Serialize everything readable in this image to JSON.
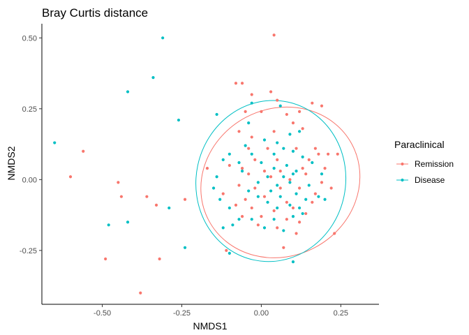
{
  "chart_data": {
    "type": "scatter",
    "title": "Bray Curtis distance",
    "xlabel": "NMDS1",
    "ylabel": "NMDS2",
    "xlim": [
      -0.69,
      0.37
    ],
    "ylim": [
      -0.44,
      0.55
    ],
    "xticks": [
      -0.5,
      -0.25,
      0.0,
      0.25
    ],
    "xtick_labels": [
      "-0.50",
      "-0.25",
      "0.00",
      "0.25"
    ],
    "yticks": [
      -0.25,
      0.0,
      0.25,
      0.5
    ],
    "ytick_labels": [
      "-0.25",
      "0.00",
      "0.25",
      "0.50"
    ],
    "grid": false,
    "legend": {
      "title": "Paraclinical",
      "placement": "right"
    },
    "series": [
      {
        "name": "Remission",
        "color": "#F8766D",
        "ellipse": {
          "cx": 0.06,
          "cy": -0.01,
          "rx": 0.255,
          "ry": 0.26,
          "angle_deg": -28
        },
        "points": [
          [
            0.04,
            0.51
          ],
          [
            -0.56,
            0.1
          ],
          [
            -0.6,
            0.01
          ],
          [
            -0.45,
            -0.01
          ],
          [
            -0.44,
            -0.06
          ],
          [
            -0.36,
            -0.06
          ],
          [
            -0.33,
            -0.09
          ],
          [
            -0.49,
            -0.28
          ],
          [
            -0.32,
            -0.28
          ],
          [
            -0.38,
            -0.4
          ],
          [
            -0.08,
            0.34
          ],
          [
            -0.06,
            0.34
          ],
          [
            -0.03,
            0.3
          ],
          [
            0.03,
            0.31
          ],
          [
            0.05,
            0.28
          ],
          [
            0.16,
            0.27
          ],
          [
            0.19,
            0.26
          ],
          [
            -0.05,
            0.24
          ],
          [
            0.0,
            0.24
          ],
          [
            0.08,
            0.23
          ],
          [
            0.12,
            0.24
          ],
          [
            0.1,
            0.2
          ],
          [
            -0.07,
            0.17
          ],
          [
            -0.03,
            0.15
          ],
          [
            0.04,
            0.17
          ],
          [
            0.13,
            0.18
          ],
          [
            -0.04,
            0.11
          ],
          [
            0.02,
            0.11
          ],
          [
            0.11,
            0.11
          ],
          [
            0.17,
            0.11
          ],
          [
            0.24,
            0.09
          ],
          [
            -0.02,
            0.07
          ],
          [
            0.05,
            0.07
          ],
          [
            0.15,
            0.07
          ],
          [
            0.18,
            0.09
          ],
          [
            0.21,
            0.09
          ],
          [
            -0.1,
            0.05
          ],
          [
            -0.06,
            0.04
          ],
          [
            0.01,
            0.03
          ],
          [
            0.06,
            0.03
          ],
          [
            0.13,
            0.04
          ],
          [
            0.2,
            0.04
          ],
          [
            -0.17,
            0.04
          ],
          [
            -0.04,
            0.02
          ],
          [
            0.03,
            0.01
          ],
          [
            0.09,
            0.0
          ],
          [
            0.14,
            0.02
          ],
          [
            0.19,
            -0.01
          ],
          [
            -0.07,
            -0.02
          ],
          [
            -0.02,
            -0.03
          ],
          [
            0.06,
            -0.03
          ],
          [
            0.12,
            -0.03
          ],
          [
            0.17,
            -0.05
          ],
          [
            0.22,
            -0.03
          ],
          [
            -0.12,
            -0.05
          ],
          [
            -0.05,
            -0.07
          ],
          [
            0.01,
            -0.06
          ],
          [
            0.08,
            -0.08
          ],
          [
            0.16,
            -0.08
          ],
          [
            -0.08,
            -0.09
          ],
          [
            -0.03,
            -0.1
          ],
          [
            0.04,
            -0.11
          ],
          [
            0.1,
            -0.1
          ],
          [
            0.14,
            -0.12
          ],
          [
            -0.06,
            -0.13
          ],
          [
            0.0,
            -0.13
          ],
          [
            0.08,
            -0.14
          ],
          [
            0.12,
            -0.15
          ],
          [
            -0.01,
            -0.16
          ],
          [
            0.05,
            -0.17
          ],
          [
            0.11,
            -0.19
          ],
          [
            0.23,
            -0.19
          ],
          [
            -0.24,
            -0.07
          ],
          [
            0.07,
            -0.24
          ],
          [
            -0.11,
            -0.25
          ]
        ]
      },
      {
        "name": "Disease",
        "color": "#00BFC4",
        "ellipse": {
          "cx": 0.03,
          "cy": -0.005,
          "rx": 0.235,
          "ry": 0.285,
          "angle_deg": 12
        },
        "points": [
          [
            -0.31,
            0.5
          ],
          [
            -0.34,
            0.36
          ],
          [
            -0.42,
            0.31
          ],
          [
            -0.65,
            0.13
          ],
          [
            -0.26,
            0.21
          ],
          [
            -0.48,
            -0.16
          ],
          [
            -0.42,
            -0.15
          ],
          [
            -0.29,
            -0.1
          ],
          [
            -0.24,
            -0.24
          ],
          [
            -0.03,
            0.27
          ],
          [
            0.06,
            0.26
          ],
          [
            -0.14,
            0.23
          ],
          [
            -0.04,
            0.2
          ],
          [
            0.09,
            0.16
          ],
          [
            0.12,
            0.17
          ],
          [
            0.01,
            0.14
          ],
          [
            0.05,
            0.13
          ],
          [
            -0.05,
            0.12
          ],
          [
            0.07,
            0.11
          ],
          [
            0.1,
            0.1
          ],
          [
            -0.1,
            0.09
          ],
          [
            -0.03,
            0.09
          ],
          [
            0.04,
            0.09
          ],
          [
            0.13,
            0.08
          ],
          [
            -0.12,
            0.07
          ],
          [
            -0.07,
            0.06
          ],
          [
            0.0,
            0.06
          ],
          [
            0.08,
            0.05
          ],
          [
            0.16,
            0.06
          ],
          [
            -0.06,
            0.03
          ],
          [
            0.04,
            0.04
          ],
          [
            0.11,
            0.03
          ],
          [
            0.19,
            0.02
          ],
          [
            -0.14,
            0.01
          ],
          [
            0.02,
            0.01
          ],
          [
            0.07,
            0.01
          ],
          [
            0.1,
            0.02
          ],
          [
            -0.01,
            -0.01
          ],
          [
            0.05,
            -0.02
          ],
          [
            0.09,
            -0.01
          ],
          [
            0.15,
            -0.02
          ],
          [
            -0.15,
            -0.03
          ],
          [
            -0.04,
            -0.04
          ],
          [
            0.03,
            -0.04
          ],
          [
            0.11,
            -0.05
          ],
          [
            0.18,
            -0.06
          ],
          [
            -0.13,
            -0.07
          ],
          [
            -0.01,
            -0.06
          ],
          [
            0.06,
            -0.06
          ],
          [
            0.14,
            -0.07
          ],
          [
            0.2,
            -0.07
          ],
          [
            0.02,
            -0.08
          ],
          [
            0.09,
            -0.09
          ],
          [
            -0.1,
            -0.1
          ],
          [
            0.05,
            -0.1
          ],
          [
            0.12,
            -0.1
          ],
          [
            -0.07,
            -0.14
          ],
          [
            -0.03,
            -0.14
          ],
          [
            0.04,
            -0.14
          ],
          [
            0.1,
            -0.13
          ],
          [
            0.13,
            -0.12
          ],
          [
            -0.09,
            -0.16
          ],
          [
            0.01,
            -0.17
          ],
          [
            0.07,
            -0.18
          ],
          [
            -0.12,
            -0.17
          ],
          [
            -0.1,
            -0.26
          ],
          [
            0.1,
            -0.29
          ]
        ]
      }
    ]
  }
}
